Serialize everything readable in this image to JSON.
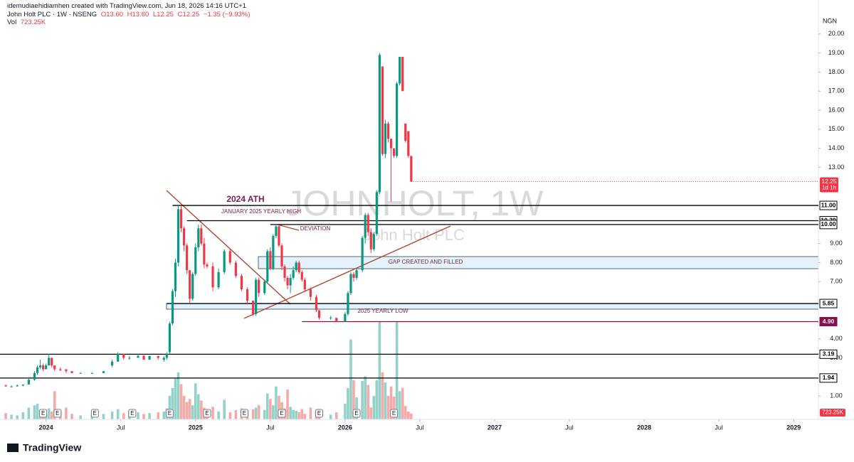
{
  "header": {
    "author_line": "idemudiaehidiamhen created with TradingView.com, Jun 18, 2026 14:16 UTC+1",
    "symbol": "John Holt PLC · 1W · NSENG",
    "ohlc": [
      "O13.60",
      "H13.60",
      "L12.25",
      "C12.25",
      "−1.35 (−9.93%)"
    ],
    "volume_label": "Vol",
    "volume_value": "723.25K"
  },
  "watermark": {
    "title": "JOHNHOLT, 1W",
    "subtitle": "John Holt PLC"
  },
  "brand": "TradingView",
  "chart_data": {
    "type": "candlestick",
    "currency": "NGN",
    "colors": {
      "up": "#089981",
      "down": "#f23645",
      "up_volume": "#92d2c8",
      "down_volume": "#f7a9a7"
    },
    "x": [
      0,
      2,
      4,
      6,
      8,
      10,
      11,
      12,
      13,
      14,
      15,
      16,
      17,
      19,
      21,
      23,
      26,
      30,
      34,
      37,
      39,
      41,
      43,
      46,
      48,
      50,
      53,
      55,
      56,
      57,
      58,
      59,
      60,
      61,
      62,
      63,
      64,
      65,
      66,
      67,
      68,
      69,
      70,
      72,
      74,
      76,
      78,
      80,
      82,
      84,
      86,
      87,
      88,
      90,
      91,
      92,
      93,
      94,
      95,
      96,
      97,
      98,
      99,
      100,
      101,
      102,
      103,
      104,
      106,
      108,
      109,
      113,
      115,
      118,
      119,
      120,
      121,
      122,
      124,
      125,
      126,
      127,
      128,
      129,
      130,
      131,
      132,
      133,
      134,
      135,
      136,
      137,
      138,
      139,
      140,
      141
    ],
    "open": [
      1.55,
      1.5,
      1.5,
      1.55,
      1.6,
      1.85,
      2.2,
      2.5,
      2.6,
      2.4,
      2.6,
      3.0,
      2.6,
      2.4,
      2.4,
      2.3,
      2.2,
      2.2,
      2.2,
      2.6,
      2.8,
      3.2,
      3.0,
      3.0,
      3.1,
      2.9,
      3.1,
      2.9,
      3.0,
      3.3,
      4.8,
      6.5,
      8.0,
      10.8,
      9.8,
      8.9,
      7.6,
      6.1,
      7.4,
      8.8,
      9.8,
      9.0,
      7.9,
      7.8,
      6.7,
      7.5,
      8.6,
      8.0,
      7.3,
      6.6,
      6.0,
      5.3,
      7.1,
      6.4,
      7.0,
      8.6,
      7.7,
      9.4,
      9.9,
      8.9,
      7.8,
      7.2,
      6.8,
      7.2,
      7.6,
      8.0,
      7.5,
      7.1,
      6.6,
      6.2,
      5.5,
      5.1,
      5.1,
      4.9,
      5.3,
      6.4,
      7.4,
      7.2,
      7.6,
      9.3,
      10.5,
      9.6,
      8.7,
      9.5,
      11.7,
      18.3,
      13.7,
      15.3,
      14.5,
      14.0,
      13.6,
      17.4,
      18.8,
      15.3,
      14.9,
      13.6
    ],
    "high": [
      1.6,
      1.55,
      1.6,
      1.6,
      1.9,
      2.3,
      2.6,
      2.9,
      2.7,
      2.7,
      3.2,
      3.0,
      2.6,
      2.5,
      2.4,
      2.3,
      2.25,
      2.25,
      2.3,
      2.9,
      3.3,
      3.2,
      3.1,
      3.2,
      3.2,
      3.1,
      3.1,
      3.1,
      3.3,
      4.9,
      6.6,
      8.2,
      11.0,
      11.0,
      9.9,
      9.0,
      7.6,
      7.5,
      9.0,
      10.0,
      10.0,
      9.3,
      8.0,
      8.0,
      7.7,
      8.7,
      8.7,
      8.1,
      7.4,
      6.7,
      6.0,
      7.2,
      7.2,
      7.1,
      8.7,
      8.8,
      9.5,
      10.0,
      10.0,
      9.0,
      7.9,
      7.3,
      7.4,
      7.8,
      8.1,
      8.1,
      7.6,
      7.2,
      6.7,
      6.3,
      5.5,
      5.2,
      5.1,
      5.4,
      6.5,
      7.5,
      7.5,
      7.7,
      9.4,
      10.6,
      10.6,
      9.8,
      9.6,
      11.8,
      19.0,
      18.3,
      15.5,
      15.4,
      14.5,
      14.0,
      17.5,
      18.8,
      18.8,
      15.3,
      14.9,
      13.6
    ],
    "low": [
      1.5,
      1.45,
      1.5,
      1.5,
      1.6,
      1.8,
      2.1,
      2.4,
      2.3,
      2.4,
      2.6,
      2.5,
      2.3,
      2.3,
      2.2,
      2.2,
      2.2,
      2.2,
      2.2,
      2.5,
      2.8,
      2.9,
      2.9,
      3.0,
      2.9,
      2.9,
      2.9,
      2.8,
      2.9,
      3.2,
      4.7,
      6.2,
      7.8,
      9.6,
      8.6,
      7.4,
      5.9,
      6.0,
      7.3,
      8.6,
      8.9,
      7.7,
      7.7,
      6.5,
      6.6,
      7.4,
      7.9,
      7.2,
      6.5,
      5.8,
      5.2,
      5.2,
      6.2,
      6.3,
      6.9,
      7.6,
      7.6,
      9.3,
      8.8,
      7.6,
      7.0,
      6.6,
      6.4,
      7.1,
      7.5,
      7.4,
      7.0,
      6.5,
      6.0,
      5.4,
      5.0,
      5.0,
      4.9,
      4.9,
      5.2,
      6.3,
      7.0,
      7.1,
      7.5,
      9.0,
      9.4,
      8.5,
      8.6,
      9.4,
      11.6,
      13.6,
      13.5,
      14.3,
      11.2,
      13.5,
      13.5,
      17.3,
      17.0,
      14.3,
      13.5,
      12.25
    ],
    "close": [
      1.5,
      1.5,
      1.55,
      1.6,
      1.85,
      2.2,
      2.5,
      2.6,
      2.4,
      2.6,
      3.0,
      2.6,
      2.4,
      2.35,
      2.3,
      2.2,
      2.2,
      2.2,
      2.3,
      2.8,
      3.2,
      3.0,
      3.0,
      3.1,
      2.9,
      3.1,
      3.0,
      3.0,
      3.2,
      4.8,
      6.5,
      8.0,
      10.8,
      9.8,
      8.9,
      7.6,
      6.1,
      7.4,
      8.8,
      9.8,
      9.0,
      7.9,
      7.8,
      6.7,
      7.5,
      8.6,
      8.0,
      7.3,
      6.6,
      6.0,
      5.3,
      7.1,
      6.4,
      7.0,
      8.6,
      7.7,
      9.4,
      9.9,
      8.9,
      7.8,
      7.2,
      6.8,
      7.2,
      7.6,
      8.0,
      7.5,
      7.1,
      6.6,
      6.2,
      5.5,
      5.1,
      5.1,
      4.9,
      5.3,
      6.4,
      7.4,
      7.2,
      7.6,
      9.3,
      10.5,
      9.6,
      8.7,
      9.5,
      11.7,
      18.9,
      13.7,
      15.3,
      14.5,
      14.0,
      13.6,
      17.4,
      18.8,
      17.0,
      14.4,
      13.6,
      12.25
    ],
    "volume": [
      800,
      600,
      500,
      900,
      1500,
      1800,
      2000,
      1200,
      900,
      700,
      1400,
      1000,
      3600,
      900,
      1500,
      700,
      500,
      600,
      700,
      1000,
      1300,
      800,
      1100,
      900,
      700,
      800,
      900,
      1000,
      1400,
      3000,
      4000,
      5200,
      6000,
      4500,
      3000,
      2200,
      2600,
      1800,
      4600,
      3200,
      2400,
      1500,
      900,
      1600,
      1000,
      2500,
      900,
      1200,
      1400,
      1000,
      1300,
      1500,
      1800,
      1200,
      3300,
      2600,
      1800,
      4200,
      3000,
      2200,
      1400,
      3800,
      1600,
      1200,
      1100,
      900,
      1300,
      700,
      1500,
      1100,
      1300,
      600,
      900,
      2000,
      4000,
      10200,
      5000,
      2800,
      4900,
      5500,
      4400,
      1500,
      3000,
      5000,
      12500,
      6000,
      4700,
      3000,
      4200,
      2900,
      12500,
      3600,
      4000,
      1700,
      1000,
      723.25
    ],
    "vlim": [
      0,
      12700
    ],
    "xlim": [
      -2,
      282.6
    ],
    "xticks": [
      {
        "value": 14,
        "label": "2024"
      },
      {
        "value": 40,
        "label": "Jul"
      },
      {
        "value": 66,
        "label": "2025"
      },
      {
        "value": 92,
        "label": "Jul"
      },
      {
        "value": 118,
        "label": "2026"
      },
      {
        "value": 144,
        "label": "Jul"
      },
      {
        "value": 170,
        "label": "2027"
      },
      {
        "value": 196,
        "label": "Jul"
      },
      {
        "value": 222,
        "label": "2028"
      },
      {
        "value": 248,
        "label": "Jul"
      },
      {
        "value": 274,
        "label": "2029"
      }
    ],
    "ylim": [
      -0.23,
      20.48
    ],
    "yticks": [
      {
        "value": 1,
        "label": "1.00"
      },
      {
        "value": 3,
        "label": "3.00"
      },
      {
        "value": 4,
        "label": "4.00"
      },
      {
        "value": 7,
        "label": "7.00"
      },
      {
        "value": 8,
        "label": "8.00"
      },
      {
        "value": 9,
        "label": "9.00"
      },
      {
        "value": 13,
        "label": "13.00"
      },
      {
        "value": 14,
        "label": "14.00"
      },
      {
        "value": 15,
        "label": "15.00"
      },
      {
        "value": 16,
        "label": "16.00"
      },
      {
        "value": 17,
        "label": "17.00"
      },
      {
        "value": 18,
        "label": "18.00"
      },
      {
        "value": 19,
        "label": "19.00"
      },
      {
        "value": 20,
        "label": "20.00"
      }
    ],
    "last_price": 12.25,
    "countdown": "1d 1h",
    "levels": [
      {
        "value": 11,
        "label": "11.00",
        "color": "#000000"
      },
      {
        "value": 10.2,
        "label": "10.20",
        "color": "#000000"
      },
      {
        "value": 10,
        "label": "10.00",
        "color": "#000000"
      },
      {
        "value": 5.85,
        "label": "5.85",
        "color": "#000000"
      },
      {
        "value": 4.9,
        "label": "4.90",
        "color": "#880e4f"
      },
      {
        "value": 3.19,
        "label": "3.19",
        "color": "#000000"
      },
      {
        "value": 1.94,
        "label": "1.94",
        "color": "#000000"
      }
    ],
    "annotations": [
      "2024 ATH",
      "JANUARY 2025 YEARLY HIGH",
      "DEVIATION",
      "GAP CREATED AND FILLED",
      "2025 YEARLY LOW"
    ],
    "earnings": {
      "label": "E",
      "x": [
        13,
        18,
        31,
        44,
        57,
        70,
        83,
        96,
        109,
        122,
        135
      ]
    }
  }
}
